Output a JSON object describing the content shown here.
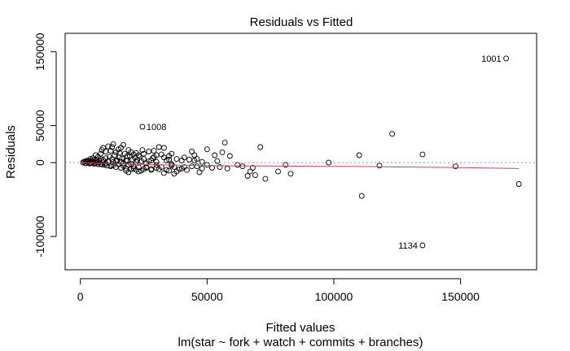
{
  "chart_data": {
    "type": "scatter",
    "title": "Residuals vs Fitted",
    "xlabel": "Fitted values",
    "sublabel": "lm(star ~ fork + watch + commits + branches)",
    "ylabel": "Residuals",
    "xlim": [
      -6000,
      180000
    ],
    "ylim": [
      -145000,
      175000
    ],
    "x_ticks": [
      0,
      50000,
      100000,
      150000
    ],
    "x_tick_labels": [
      "0",
      "50000",
      "100000",
      "150000"
    ],
    "y_ticks": [
      -100000,
      0,
      50000,
      150000
    ],
    "y_tick_labels": [
      "-100000",
      "0",
      "50000",
      "150000"
    ],
    "zero_line": true,
    "colors": {
      "smoother": "#d2455a",
      "zero_line": "#999999",
      "points": "#000000"
    },
    "labeled_points": [
      {
        "label": "1001",
        "x": 168000,
        "y": 141000
      },
      {
        "label": "1008",
        "x": 24500,
        "y": 48500
      },
      {
        "label": "1134",
        "x": 135000,
        "y": -112000
      }
    ],
    "points": [
      [
        1000,
        0
      ],
      [
        1500,
        1000
      ],
      [
        2000,
        -500
      ],
      [
        2500,
        1500
      ],
      [
        3000,
        800
      ],
      [
        3500,
        -1200
      ],
      [
        4000,
        2500
      ],
      [
        4500,
        -800
      ],
      [
        5000,
        3000
      ],
      [
        5500,
        -1500
      ],
      [
        6000,
        1500
      ],
      [
        6500,
        4000
      ],
      [
        7000,
        -2000
      ],
      [
        7500,
        2800
      ],
      [
        8000,
        5000
      ],
      [
        8500,
        -2500
      ],
      [
        9000,
        3500
      ],
      [
        9500,
        -3000
      ],
      [
        10000,
        6000
      ],
      [
        10500,
        -4000
      ],
      [
        11000,
        2000
      ],
      [
        11500,
        8000
      ],
      [
        12000,
        -5000
      ],
      [
        12500,
        4500
      ],
      [
        13000,
        -3500
      ],
      [
        13500,
        10000
      ],
      [
        14000,
        -6000
      ],
      [
        14500,
        3000
      ],
      [
        15000,
        -2500
      ],
      [
        15500,
        7000
      ],
      [
        16000,
        -7000
      ],
      [
        16500,
        5500
      ],
      [
        17000,
        -4500
      ],
      [
        17500,
        12000
      ],
      [
        18000,
        -8000
      ],
      [
        18500,
        2500
      ],
      [
        19000,
        -3000
      ],
      [
        19500,
        9000
      ],
      [
        20000,
        -9000
      ],
      [
        20500,
        4000
      ],
      [
        21000,
        -5500
      ],
      [
        21500,
        6500
      ],
      [
        22000,
        -10000
      ],
      [
        22500,
        3500
      ],
      [
        23000,
        -6500
      ],
      [
        23500,
        8000
      ],
      [
        24000,
        -11000
      ],
      [
        25000,
        5000
      ],
      [
        26000,
        -7000
      ],
      [
        27000,
        2000
      ],
      [
        28000,
        -8500
      ],
      [
        29000,
        7500
      ],
      [
        30000,
        -3000
      ],
      [
        31000,
        21000
      ],
      [
        32000,
        -6000
      ],
      [
        33000,
        20000
      ],
      [
        34000,
        -10000
      ],
      [
        35000,
        4000
      ],
      [
        36000,
        -4000
      ],
      [
        37000,
        -15000
      ],
      [
        38000,
        -12000
      ],
      [
        40000,
        -8000
      ],
      [
        42000,
        -10000
      ],
      [
        44000,
        15000
      ],
      [
        45000,
        3000
      ],
      [
        46000,
        -5000
      ],
      [
        47000,
        -13000
      ],
      [
        48000,
        -8000
      ],
      [
        50000,
        18000
      ],
      [
        52000,
        -7000
      ],
      [
        53000,
        10000
      ],
      [
        55000,
        -6000
      ],
      [
        56000,
        14000
      ],
      [
        57000,
        27000
      ],
      [
        59000,
        9000
      ],
      [
        62000,
        -3000
      ],
      [
        64000,
        -5000
      ],
      [
        66000,
        -18000
      ],
      [
        67000,
        -12000
      ],
      [
        68000,
        -7000
      ],
      [
        69000,
        -17000
      ],
      [
        71000,
        21000
      ],
      [
        73000,
        -22000
      ],
      [
        78000,
        -12000
      ],
      [
        81000,
        -3000
      ],
      [
        83000,
        -15000
      ],
      [
        98000,
        0
      ],
      [
        110000,
        10000
      ],
      [
        111000,
        -45000
      ],
      [
        118000,
        -4000
      ],
      [
        123000,
        39000
      ],
      [
        135000,
        11000
      ],
      [
        148000,
        -5000
      ],
      [
        173000,
        -29000
      ],
      [
        9000,
        20000
      ],
      [
        11000,
        22000
      ],
      [
        13000,
        25000
      ],
      [
        15000,
        18000
      ],
      [
        10000,
        15000
      ],
      [
        8000,
        12000
      ],
      [
        12000,
        16000
      ],
      [
        14000,
        14000
      ],
      [
        16000,
        20000
      ],
      [
        17000,
        24000
      ],
      [
        19000,
        17000
      ],
      [
        20000,
        14000
      ],
      [
        21000,
        11000
      ],
      [
        22000,
        13000
      ],
      [
        23000,
        10000
      ],
      [
        25000,
        12000
      ],
      [
        27000,
        15000
      ],
      [
        29000,
        16000
      ],
      [
        30000,
        10000
      ],
      [
        32000,
        11000
      ],
      [
        33000,
        7000
      ],
      [
        35000,
        9000
      ],
      [
        36000,
        12000
      ],
      [
        38000,
        5000
      ],
      [
        40000,
        3000
      ],
      [
        41000,
        7000
      ],
      [
        43000,
        4000
      ],
      [
        45000,
        10000
      ],
      [
        6000,
        10000
      ],
      [
        7000,
        8000
      ],
      [
        5000,
        6000
      ],
      [
        4000,
        5000
      ],
      [
        3000,
        3000
      ],
      [
        2000,
        2000
      ],
      [
        18000,
        -11000
      ],
      [
        19000,
        -13000
      ],
      [
        21000,
        -8000
      ],
      [
        23000,
        -12000
      ],
      [
        25000,
        -9000
      ],
      [
        26000,
        -6000
      ],
      [
        28000,
        -10000
      ],
      [
        30000,
        -7000
      ],
      [
        31000,
        -9000
      ],
      [
        33000,
        -14000
      ],
      [
        35000,
        -11000
      ],
      [
        37000,
        -6000
      ],
      [
        39000,
        -9000
      ],
      [
        41000,
        -6000
      ],
      [
        12000,
        -4000
      ],
      [
        13000,
        1000
      ],
      [
        14000,
        2000
      ],
      [
        16000,
        1000
      ],
      [
        17000,
        -1000
      ],
      [
        18000,
        3000
      ],
      [
        20000,
        -2000
      ],
      [
        22000,
        1000
      ],
      [
        24000,
        2000
      ],
      [
        26000,
        -1000
      ],
      [
        28000,
        3000
      ],
      [
        30000,
        1000
      ],
      [
        9000,
        500
      ],
      [
        10000,
        -1000
      ],
      [
        11000,
        1500
      ],
      [
        7000,
        500
      ],
      [
        6000,
        -500
      ],
      [
        5000,
        1000
      ],
      [
        4000,
        -1000
      ],
      [
        3000,
        1200
      ],
      [
        2000,
        -800
      ],
      [
        8000,
        -2000
      ],
      [
        34000,
        3000
      ],
      [
        36000,
        -2000
      ],
      [
        44000,
        -5000
      ],
      [
        46000,
        5000
      ],
      [
        48000,
        1000
      ],
      [
        50000,
        -3000
      ],
      [
        54000,
        2000
      ],
      [
        58000,
        -8000
      ],
      [
        8500,
        17000
      ],
      [
        12500,
        21000
      ],
      [
        15500,
        13000
      ],
      [
        18500,
        9000
      ],
      [
        24500,
        17000
      ],
      [
        28500,
        6000
      ]
    ],
    "smoother": [
      [
        0,
        0
      ],
      [
        5000,
        -500
      ],
      [
        10000,
        -1000
      ],
      [
        20000,
        -2000
      ],
      [
        30000,
        -3000
      ],
      [
        40000,
        -3500
      ],
      [
        50000,
        -4000
      ],
      [
        60000,
        -4300
      ],
      [
        70000,
        -4500
      ],
      [
        80000,
        -4700
      ],
      [
        90000,
        -4900
      ],
      [
        100000,
        -5000
      ],
      [
        110000,
        -5200
      ],
      [
        120000,
        -5600
      ],
      [
        130000,
        -6000
      ],
      [
        140000,
        -6300
      ],
      [
        150000,
        -6700
      ],
      [
        160000,
        -7200
      ],
      [
        170000,
        -7800
      ],
      [
        173000,
        -8000
      ]
    ]
  }
}
